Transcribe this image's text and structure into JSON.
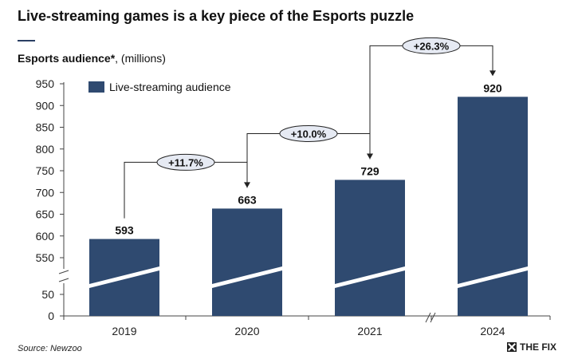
{
  "header": {
    "title": "Live-streaming games is a key piece of the Esports puzzle",
    "subtitle_bold": "Esports audience*",
    "subtitle_rest": ", (millions)"
  },
  "footer": {
    "source": "Source: Newzoo",
    "logo_text": "THE FIX"
  },
  "colors": {
    "bar": "#2f4a70",
    "accent": "#2b3f63",
    "bubble": "#e6eaf3"
  },
  "chart_data": {
    "type": "bar",
    "categories": [
      "2019",
      "2020",
      "2021",
      "2024"
    ],
    "series": [
      {
        "name": "Live-streaming audience",
        "values": [
          593,
          663,
          729,
          920
        ]
      }
    ],
    "value_labels": [
      "593",
      "663",
      "729",
      "920"
    ],
    "growth_labels": [
      "+11.7%",
      "+10.0%",
      "+26.3%"
    ],
    "y_ticks": [
      0,
      50,
      550,
      600,
      650,
      700,
      750,
      800,
      850,
      900,
      950
    ],
    "y_axis_break": [
      50,
      550
    ],
    "x_axis_break_between": [
      "2021",
      "2024"
    ],
    "legend_position": "top-left",
    "grid": false
  }
}
